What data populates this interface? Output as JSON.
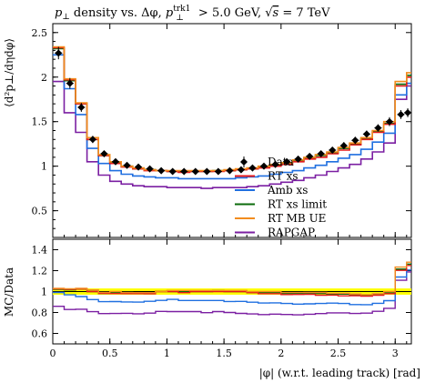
{
  "chart_data": {
    "type": "line",
    "title": "p⊥ density vs. Δφ, p⊥trk1 > 5.0 GeV, √s = 7 TeV",
    "title_parts": {
      "lead": "p",
      "lead_sub": "⊥",
      "mid": " density vs. Δφ, ",
      "p2": "p",
      "p2_sup": "trk1",
      "p2_sub": "⊥",
      "cut": " > 5.0 GeV, ",
      "sqrt": "√",
      "s": "s",
      "energy": " = 7 TeV"
    },
    "ylabel": "⟨d²p⊥/dηdφ⟩",
    "ratio_ylabel": "MC/Data",
    "xlabel": "|φ| (w.r.t. leading track) [rad]",
    "xlim": [
      0,
      3.1416
    ],
    "ylim": [
      0.2,
      2.6
    ],
    "ratio_ylim": [
      0.5,
      1.5
    ],
    "xticks": [
      "0",
      "0.5",
      "1",
      "1.5",
      "2",
      "2.5",
      "3"
    ],
    "xtick_values": [
      0,
      0.5,
      1,
      1.5,
      2,
      2.5,
      3
    ],
    "yticks": [
      "0.5",
      "1",
      "1.5",
      "2",
      "2.5"
    ],
    "ytick_values": [
      0.5,
      1,
      1.5,
      2,
      2.5
    ],
    "ratio_yticks": [
      "0.6",
      "0.8",
      "1",
      "1.2",
      "1.4"
    ],
    "ratio_ytick_values": [
      0.6,
      0.8,
      1.0,
      1.2,
      1.4
    ],
    "legend_position": "center-right",
    "legend": [
      "Data",
      "RT xs",
      "Amb xs",
      "RT xs limit",
      "RT MB UE",
      "RAPGAP"
    ],
    "data": {
      "name": "Data",
      "x": [
        0.05,
        0.15,
        0.25,
        0.35,
        0.45,
        0.55,
        0.65,
        0.75,
        0.85,
        0.95,
        1.05,
        1.15,
        1.25,
        1.35,
        1.45,
        1.55,
        1.65,
        1.75,
        1.85,
        1.95,
        2.05,
        2.15,
        2.25,
        2.35,
        2.45,
        2.55,
        2.65,
        2.75,
        2.85,
        2.95,
        3.05,
        3.11
      ],
      "y": [
        2.27,
        1.93,
        1.66,
        1.3,
        1.14,
        1.05,
        1.01,
        0.99,
        0.97,
        0.95,
        0.94,
        0.94,
        0.94,
        0.94,
        0.94,
        0.95,
        0.96,
        0.98,
        1.0,
        1.02,
        1.05,
        1.08,
        1.11,
        1.14,
        1.18,
        1.23,
        1.29,
        1.36,
        1.43,
        1.5,
        1.58,
        1.6
      ],
      "yerr": [
        0.07,
        0.06,
        0.05,
        0.04,
        0.03,
        0.03,
        0.03,
        0.03,
        0.03,
        0.03,
        0.03,
        0.03,
        0.03,
        0.03,
        0.03,
        0.03,
        0.03,
        0.03,
        0.03,
        0.03,
        0.03,
        0.03,
        0.03,
        0.03,
        0.03,
        0.04,
        0.04,
        0.04,
        0.04,
        0.05,
        0.05,
        0.05
      ]
    },
    "bin_edges": [
      0,
      0.1,
      0.2,
      0.3,
      0.4,
      0.5,
      0.6,
      0.7,
      0.8,
      0.9,
      1.0,
      1.1,
      1.2,
      1.3,
      1.4,
      1.5,
      1.6,
      1.7,
      1.8,
      1.9,
      2.0,
      2.1,
      2.2,
      2.3,
      2.4,
      2.5,
      2.6,
      2.7,
      2.8,
      2.9,
      3.0,
      3.1,
      3.1416
    ],
    "series": [
      {
        "name": "RT xs",
        "color": "#e41a1c",
        "values": [
          2.33,
          1.97,
          1.7,
          1.3,
          1.12,
          1.03,
          0.99,
          0.97,
          0.95,
          0.95,
          0.94,
          0.93,
          0.94,
          0.94,
          0.94,
          0.95,
          0.96,
          0.97,
          0.98,
          1.0,
          1.02,
          1.05,
          1.08,
          1.1,
          1.14,
          1.18,
          1.24,
          1.3,
          1.38,
          1.47,
          1.9,
          2.0
        ]
      },
      {
        "name": "Amb xs",
        "color": "#1f6fe0",
        "values": [
          2.25,
          1.87,
          1.58,
          1.2,
          1.03,
          0.95,
          0.91,
          0.89,
          0.88,
          0.87,
          0.87,
          0.86,
          0.86,
          0.86,
          0.86,
          0.86,
          0.87,
          0.88,
          0.89,
          0.91,
          0.93,
          0.95,
          0.98,
          1.01,
          1.05,
          1.09,
          1.13,
          1.19,
          1.27,
          1.37,
          1.8,
          1.93
        ]
      },
      {
        "name": "RT xs limit",
        "color": "#0b6b0b",
        "values": [
          2.32,
          1.96,
          1.7,
          1.3,
          1.12,
          1.04,
          1.0,
          0.97,
          0.96,
          0.95,
          0.94,
          0.94,
          0.94,
          0.94,
          0.95,
          0.95,
          0.96,
          0.97,
          0.99,
          1.01,
          1.03,
          1.06,
          1.09,
          1.12,
          1.15,
          1.2,
          1.25,
          1.31,
          1.39,
          1.48,
          1.92,
          2.02
        ]
      },
      {
        "name": "RT MB UE",
        "color": "#f28c1e",
        "values": [
          2.34,
          1.98,
          1.71,
          1.32,
          1.13,
          1.05,
          1.0,
          0.98,
          0.96,
          0.95,
          0.95,
          0.95,
          0.95,
          0.95,
          0.95,
          0.96,
          0.97,
          0.98,
          1.0,
          1.02,
          1.04,
          1.07,
          1.1,
          1.13,
          1.16,
          1.21,
          1.26,
          1.32,
          1.4,
          1.5,
          1.95,
          2.05
        ]
      },
      {
        "name": "RAPGAP",
        "color": "#7b1fa2",
        "values": [
          1.95,
          1.6,
          1.38,
          1.05,
          0.9,
          0.83,
          0.8,
          0.78,
          0.77,
          0.77,
          0.76,
          0.76,
          0.76,
          0.75,
          0.76,
          0.76,
          0.76,
          0.77,
          0.78,
          0.8,
          0.82,
          0.84,
          0.87,
          0.9,
          0.94,
          0.98,
          1.02,
          1.08,
          1.16,
          1.26,
          1.75,
          1.9
        ]
      }
    ]
  }
}
